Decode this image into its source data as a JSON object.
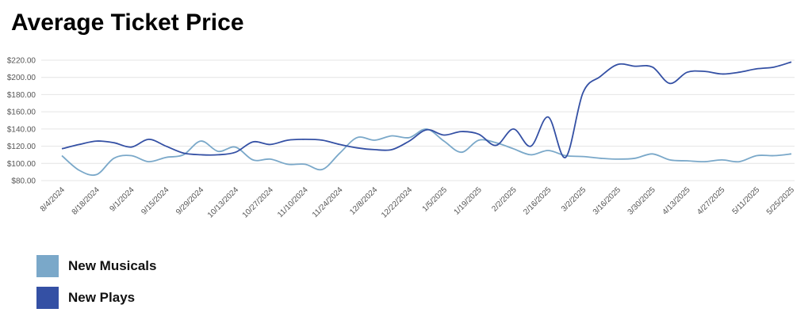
{
  "chart_data": {
    "type": "line",
    "title": "Average Ticket Price",
    "xlabel": "",
    "ylabel": "",
    "ylim": [
      80,
      220
    ],
    "y_ticks": [
      "$80.00",
      "$100.00",
      "$120.00",
      "$140.00",
      "$160.00",
      "$180.00",
      "$200.00",
      "$220.00"
    ],
    "x_tick_labels": [
      "8/4/2024",
      "8/18/2024",
      "9/1/2024",
      "9/15/2024",
      "9/29/2024",
      "10/13/2024",
      "10/27/2024",
      "11/10/2024",
      "11/24/2024",
      "12/8/2024",
      "12/22/2024",
      "1/5/2025",
      "1/19/2025",
      "2/2/2025",
      "2/16/2025",
      "3/2/2025",
      "3/16/2025",
      "3/30/2025",
      "4/13/2025",
      "4/27/2025",
      "5/11/2025",
      "5/25/2025"
    ],
    "x": [
      "8/4/2024",
      "8/11/2024",
      "8/18/2024",
      "8/25/2024",
      "9/1/2024",
      "9/8/2024",
      "9/15/2024",
      "9/22/2024",
      "9/29/2024",
      "10/6/2024",
      "10/13/2024",
      "10/20/2024",
      "10/27/2024",
      "11/3/2024",
      "11/10/2024",
      "11/17/2024",
      "11/24/2024",
      "12/1/2024",
      "12/8/2024",
      "12/15/2024",
      "12/22/2024",
      "12/29/2024",
      "1/5/2025",
      "1/12/2025",
      "1/19/2025",
      "1/26/2025",
      "2/2/2025",
      "2/9/2025",
      "2/16/2025",
      "2/23/2025",
      "3/2/2025",
      "3/9/2025",
      "3/16/2025",
      "3/23/2025",
      "3/30/2025",
      "4/6/2025",
      "4/13/2025",
      "4/20/2025",
      "4/27/2025",
      "5/4/2025",
      "5/11/2025",
      "5/18/2025",
      "5/25/2025"
    ],
    "series": [
      {
        "name": "New Musicals",
        "color": "#7aa8c9",
        "values": [
          109,
          92,
          87,
          106,
          109,
          102,
          107,
          110,
          126,
          114,
          119,
          104,
          105,
          99,
          99,
          93,
          112,
          130,
          127,
          132,
          130,
          140,
          126,
          113,
          127,
          124,
          117,
          110,
          115,
          109,
          108,
          106,
          105,
          106,
          111,
          104,
          103,
          102,
          104,
          102,
          109,
          109,
          111
        ]
      },
      {
        "name": "New Plays",
        "color": "#3450a4",
        "values": [
          117,
          122,
          126,
          124,
          119,
          128,
          120,
          112,
          110,
          110,
          113,
          125,
          122,
          127,
          128,
          127,
          122,
          118,
          116,
          116,
          126,
          139,
          133,
          137,
          134,
          121,
          140,
          120,
          154,
          107,
          182,
          201,
          215,
          213,
          212,
          193,
          206,
          207,
          204,
          206,
          210,
          212,
          218
        ]
      }
    ],
    "grid": true,
    "legend": "bottom-left"
  }
}
